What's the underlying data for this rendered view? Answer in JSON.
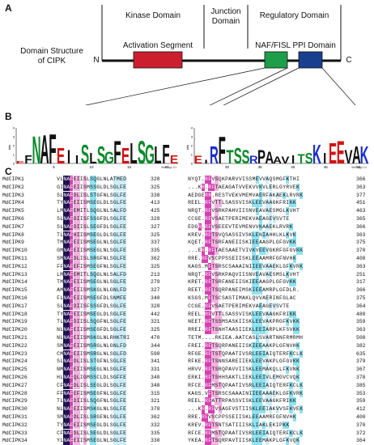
{
  "panel_a": {
    "label": "A",
    "title": "Domain Structure\nof CIPK",
    "kinase_domain": "Kinase Domain",
    "junction_domain": "Junction\nDomain",
    "regulatory_domain": "Regulatory Domain",
    "activation_segment": "Activation Segment",
    "naf_domain": "NAF/FISL PPI Domain",
    "n_term": "N",
    "c_term": "C",
    "colors": {
      "activation": "#cc1f2e",
      "naf": "#1e9e48",
      "ppi": "#1a3f8f",
      "line": "#111111"
    }
  },
  "panel_b": {
    "label": "B",
    "logo_left": {
      "letters": [
        "E",
        "F",
        "N",
        "A",
        "F",
        "E",
        "I",
        "I",
        "S",
        "L",
        "S",
        "G",
        "F",
        "E",
        "L",
        "S",
        "G",
        "L",
        "F",
        "E"
      ],
      "heights": [
        0.3,
        1.0,
        3.2,
        3.3,
        3.4,
        1.8,
        1.6,
        1.0,
        2.2,
        1.2,
        2.0,
        1.4,
        2.6,
        1.8,
        2.4,
        2.6,
        2.2,
        2.0,
        2.2,
        1.0
      ],
      "ticks": [
        "5",
        "10",
        "15",
        "20"
      ],
      "ylabel": "bits",
      "yticks": [
        "0",
        "1",
        "2",
        "3",
        "4"
      ],
      "credit": "WebLogo 3.4"
    },
    "logo_right": {
      "letters": [
        "E",
        "I",
        "R",
        "F",
        "T",
        "S",
        "S",
        "R",
        "P",
        "A",
        "A",
        "V",
        "I",
        "T",
        "S",
        "K",
        "I",
        "E",
        "E",
        "V",
        "A",
        "K"
      ],
      "heights": [
        0.9,
        0.4,
        2.0,
        3.1,
        1.6,
        1.8,
        1.6,
        0.9,
        1.6,
        1.4,
        0.8,
        0.8,
        1.0,
        1.1,
        1.2,
        2.2,
        1.2,
        2.4,
        2.6,
        1.6,
        2.0,
        2.0
      ],
      "ticks": [
        "30",
        "35",
        "40",
        "45",
        "50"
      ],
      "ylabel": "bits",
      "yticks": [
        "0",
        "1",
        "2",
        "3",
        "4"
      ],
      "credit": "WebLogo 3.4",
      "colors": {
        "blue": "#1a2fd0",
        "green": "#0c8a2c",
        "red": "#d21414",
        "purple": "#a020c0",
        "black": "#111111"
      }
    }
  },
  "panel_c": {
    "label": "C",
    "rows": [
      {
        "name": "MdCIPK1",
        "s1": "VLNAFEIISLSQGLNLATMED",
        "p1": "328",
        "s2": "NYQT.RFVSQKPARVVISSMEVVAQSMGFKTHI",
        "p2": "366"
      },
      {
        "name": "MdCIPK2",
        "s1": "GINAFEIISMSSGLDLSGLFE",
        "p1": "325",
        "s2": "...KR.RFTAEAGATVVEKVVKVLERLGYRVEK",
        "p2": "363"
      },
      {
        "name": "MdCIPK3",
        "s1": "SLNAFDLISLSTGFNLSGLFE",
        "p1": "338",
        "s2": "AEDGERR.RESTVEKVMEMVAERFAKAEKLRVRK",
        "p2": "377"
      },
      {
        "name": "MdCIPK4",
        "s1": "TYNAFEIISMSEGLDLSGLFE",
        "p1": "413",
        "s2": "REEL.RFVTTLSASSVISKLEEVAAGKFRIKK",
        "p2": "451"
      },
      {
        "name": "MdCIPK5",
        "s1": "LMNAFEMITLSQGLNLSALFD",
        "p1": "425",
        "s2": "NRQT.RFVSRKPAHVIISNVEAVAESMGLKVHT",
        "p2": "463"
      },
      {
        "name": "MdCIPK6",
        "s1": "SLNAFDIISFSSGFDLSGLFE",
        "p1": "328",
        "s2": "CCGE.RFVSAETPERIMEKVAEAGEVSVTE",
        "p2": "365"
      },
      {
        "name": "MdCIPK7",
        "s1": "SLNAFDIISLSEGFDLSGLFE",
        "p1": "327",
        "s2": "EDGR.RFVSEEEVTEVMENVVKAAEKLRVRK",
        "p2": "366"
      },
      {
        "name": "MdCIPK8",
        "s1": "TLNAFHIISMSEGLDLSGLFE",
        "p1": "325",
        "s2": "KREV.RFTSVQSASSIVSKLENIAHHLKLKVK",
        "p2": "363"
      },
      {
        "name": "MdCIPK9",
        "s1": "TMNAFEIISMSEGLNLSGLFE",
        "p1": "337",
        "s2": "KQET.RFTSRFANEIISKIEEAAGPLGFGVKK",
        "p2": "375"
      },
      {
        "name": "MdCIPK10",
        "s1": "GMNAFEIISMSEGLNLSGLFE",
        "p1": "335",
        "s2": "...ER.RFTAESAAETVIVKVEEVGKRFGFGVKK",
        "p2": "370"
      },
      {
        "name": "MdCIPK11",
        "s1": "SMNAFDLISLSRGFNLSGLFE",
        "p1": "362",
        "s2": "RRE.RFVSCPPSSEIISKLEEAAMRFGFNVHK",
        "p2": "400"
      },
      {
        "name": "MdCIPK12",
        "s1": "FFNAFEFISMSEGFNLSGLFE",
        "p1": "325",
        "s2": "KAGS.MFTSRSCSAAAINIIEEVAAEKLGFKVRK",
        "p2": "363"
      },
      {
        "name": "MdCIPK13",
        "s1": "LMNAFEMITLSQGLNLSALFD",
        "p1": "213",
        "s2": "NRQT.RFVSRKPAQVIISNVEAVAESMSLKVHT",
        "p2": "251"
      },
      {
        "name": "MdCIPK14",
        "s1": "TMNAFEIISMSEGLNLSGLFE",
        "p1": "279",
        "s2": "KRET.RFTSRFANEIISKIEEAAGPLGFGVKK",
        "p2": "317"
      },
      {
        "name": "MdCIPK15",
        "s1": "AMNAFEIISMSKGLNLGNLFD",
        "p1": "327",
        "s2": "REET.RFTSQRPANEIMSKIEEAMRPLGFDLR.",
        "p2": "366"
      },
      {
        "name": "MdCIPK16",
        "s1": "FLNAFEIISMSEGFDLSNMFE",
        "p1": "340",
        "s2": "KSGS.MFTSCSASTIMAKLQVVAERINFGLAC",
        "p2": "375"
      },
      {
        "name": "MdCIPK17",
        "s1": "SLNAFDIISFSSGFDLSGLFE",
        "p1": "328",
        "s2": "CCGE.RFVSAETPERIMEKVAEAGEVSVTE",
        "p2": "364"
      },
      {
        "name": "MdCIPK18",
        "s1": "TYNAFEIISMSEGLDLSGLFE",
        "p1": "442",
        "s2": "REEL.RFVTTLSASSVISKLEEVAAGKFRIKK",
        "p2": "480"
      },
      {
        "name": "MdCIPK19",
        "s1": "TLNAFDIISLSQGFNLSGLFE",
        "p1": "321",
        "s2": "NEET.RFTSSMSASKIISKLEEVAKPRGFKVKK",
        "p2": "359"
      },
      {
        "name": "MdCIPK20",
        "s1": "NLNAFEIISMSEGFDLSGLFE",
        "p1": "325",
        "s2": "RREI.RFTSNHTAASIIEKLEEIARPLKFSVKK",
        "p2": "363"
      },
      {
        "name": "MdCIPK21",
        "s1": "NLNAFEIISMSKGLNLRHKTRI",
        "p1": "470",
        "s2": "TETM....RKIEA.AATCASLSVARTNNFRMRMH",
        "p2": "508"
      },
      {
        "name": "MdCIPK22",
        "s1": "SMNAFEIISMSRGLNLGNLFD",
        "p1": "344",
        "s2": "FREI.RFTSQRPANEIISKIEEAAKPLGFNVHK",
        "p2": "382"
      },
      {
        "name": "MdCIPK23",
        "s1": "CMNAFEIISMSRGLNLSGLFD",
        "p1": "598",
        "s2": "RFGE.RFTSTQPAATIVSRLEEIAIQTERFKCLK",
        "p2": "635"
      },
      {
        "name": "MdCIPK24",
        "s1": "SLNAFDLISLSTGFNLSGLFE",
        "p1": "341",
        "s2": "RFKE.RFTSNNSAREIIEKLEEVAKPLGFGVKK",
        "p2": "379"
      },
      {
        "name": "MdCIPK25",
        "s1": "NMNAFEIISMSEGLNLSGLFE",
        "p1": "331",
        "s2": "HRVV.RFTSRQPAVVIISKLEEMAKQLLFKVNK",
        "p2": "367"
      },
      {
        "name": "MdCIPK26",
        "s1": "HLNAFQLIGMSSCLDLSGFFE",
        "p1": "340",
        "s2": "ERKI.RFTSHHSAKTLIEKLEEIVLEMGVCVQK",
        "p2": "378"
      },
      {
        "name": "MdCIPK27",
        "s1": "CFNAFDLISLSEGLDLSGLFE",
        "p1": "348",
        "s2": "RFCE.RFMSTQPAATIVSRLEEIAIQTERFKCLK",
        "p2": "385"
      },
      {
        "name": "MdCIPK28",
        "s1": "FFNAFEFISMSEGFNLSGLFE",
        "p1": "315",
        "s2": "KAGS.VFTSRSCSAAAINIIEEAAAEKLGFKVRK",
        "p2": "353"
      },
      {
        "name": "MdCIPK29",
        "s1": "TLNAFDIISLSQGFNLSGLFE",
        "p1": "321",
        "s2": "REEL.RFATTRPASSVISKLEEVAAGKFRIKK",
        "p2": "359"
      },
      {
        "name": "MdCIPK30",
        "s1": "NLNAFEIISMSKGLNLSGLFE",
        "p1": "378",
        "s2": "...KR.RFVSAGFVSTIISKLEEIAKVVSFKVEK",
        "p2": "412"
      },
      {
        "name": "MdCIPK31",
        "s1": "SMNAFDLISLSRGFNLSGLFE",
        "p1": "362",
        "s2": "RRE.RFVSCPPSSEIISKLEEAAMRFGFNVHK",
        "p2": "400"
      },
      {
        "name": "MdCIPK32",
        "s1": "TYNAFEIISMSEGLDLSGLFE",
        "p1": "332",
        "s2": "KREV.RFTSNTSATIIISKLIAKLEKIPKK",
        "p2": "370"
      },
      {
        "name": "MdCIPK33",
        "s1": "CFNAFDLISLSEGLDLSGLFE",
        "p1": "335",
        "s2": "RFCE.RFMSTQPAATIVSRLEEIAIQTERFKCLK",
        "p2": "372"
      },
      {
        "name": "MdCIPK34",
        "s1": "YLNAFEIISMSEGLNLSGLFE",
        "p1": "330",
        "s2": "YKEA.RFTSQRPAVTIISKLEEMAKPLGFKVQK",
        "p2": "364"
      }
    ],
    "colors": {
      "dark": "#1c1450",
      "magenta": "#d63fb0",
      "pink": "#f2b3e0",
      "cyan": "#8fe3f2",
      "lightblue": "#cdeef8"
    }
  }
}
